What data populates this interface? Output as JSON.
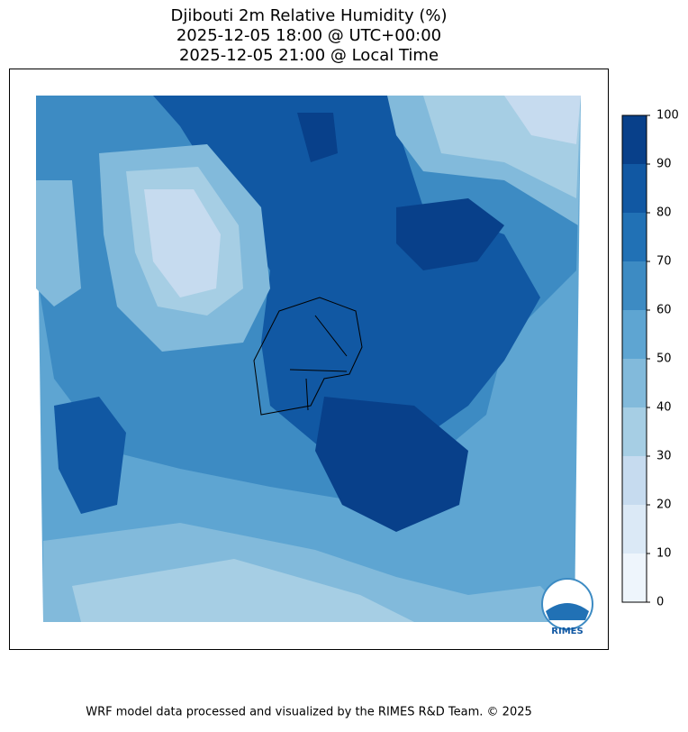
{
  "title": [
    "Djibouti 2m Relative Humidity (%)",
    "2025-12-05 18:00 @ UTC+00:00",
    "2025-12-05 21:00 @ Local Time"
  ],
  "colorbar": {
    "levels": [
      0,
      10,
      20,
      30,
      40,
      50,
      60,
      70,
      80,
      90,
      100
    ],
    "colors": [
      "#eef5fc",
      "#dbe9f6",
      "#c6dbef",
      "#a6cee4",
      "#82badb",
      "#5ea5d2",
      "#3d8bc3",
      "#2171b5",
      "#1158a3",
      "#08408a"
    ]
  },
  "logo": "RIMES",
  "footer": "WRF model data processed and visualized by the RIMES R&D Team. © 2025"
}
